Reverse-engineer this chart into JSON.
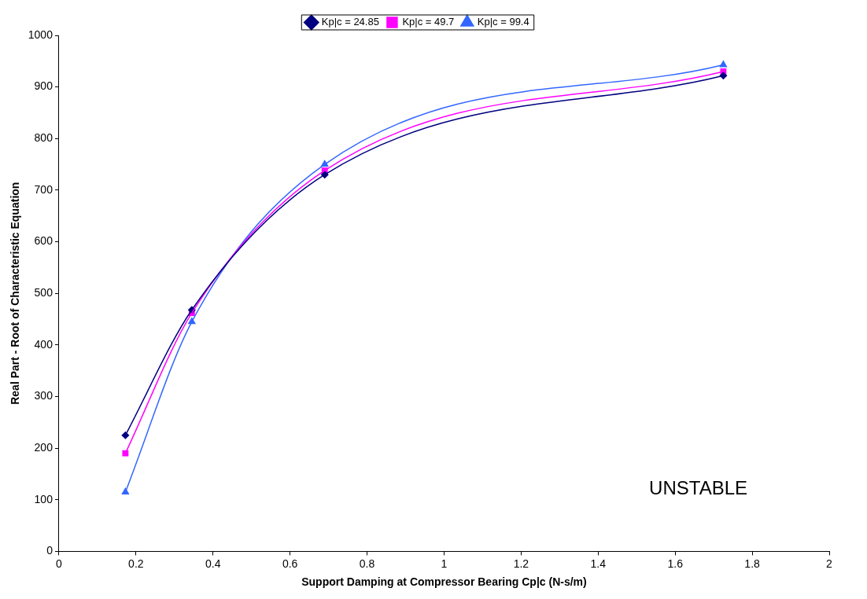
{
  "chart_data": {
    "type": "line",
    "xlabel": "Support Damping at Compressor Bearing Cp|c (N-s/m)",
    "ylabel": "Real Part - Root of Characteristic Equation",
    "x": [
      0.1725,
      0.345,
      0.69,
      1.725
    ],
    "series": [
      {
        "name": "Kp|c = 24.85",
        "color": "#000080",
        "marker": "diamond",
        "values": [
          225,
          468,
          730,
          922
        ]
      },
      {
        "name": "Kp|c = 49.7",
        "color": "#ff00ff",
        "marker": "square",
        "values": [
          190,
          462,
          738,
          930
        ]
      },
      {
        "name": "Kp|c = 99.4",
        "color": "#3366ff",
        "marker": "triangle",
        "values": [
          115,
          445,
          750,
          943
        ]
      }
    ],
    "xlim": [
      0,
      2
    ],
    "xticks": [
      0,
      0.2,
      0.4,
      0.6,
      0.8,
      1,
      1.2,
      1.4,
      1.6,
      1.8,
      2
    ],
    "ylim": [
      0,
      1000
    ],
    "yticks": [
      0,
      100,
      200,
      300,
      400,
      500,
      600,
      700,
      800,
      900,
      1000
    ],
    "grid": false,
    "legend": "top",
    "annotations": [
      "UNSTABLE"
    ]
  }
}
